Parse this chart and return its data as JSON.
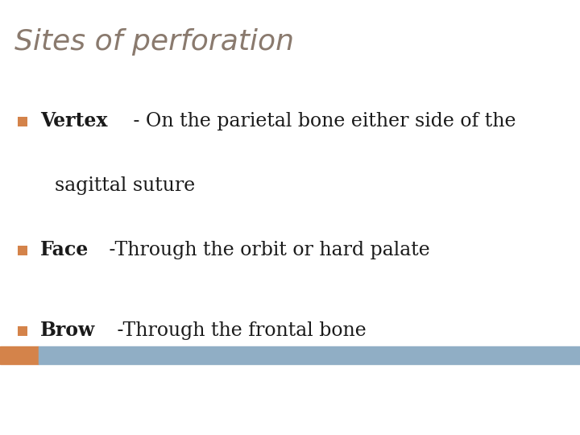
{
  "title": "Sites of perforation",
  "title_color": "#8a7a6e",
  "title_fontsize": 26,
  "title_font": "Georgia",
  "bar_orange_color": "#d4834a",
  "bar_blue_color": "#90aec5",
  "background_color": "#ffffff",
  "bullet_color": "#d4834a",
  "items": [
    {
      "bold_text": "Vertex",
      "normal_text": " - On the parietal bone either side of the",
      "continuation": "sagittal suture"
    },
    {
      "bold_text": "Face",
      "normal_text": " -Through the orbit or hard palate",
      "continuation": null
    },
    {
      "bold_text": "Brow",
      "normal_text": " -Through the frontal bone",
      "continuation": null
    }
  ],
  "main_fontsize": 17,
  "text_color": "#1a1a1a"
}
